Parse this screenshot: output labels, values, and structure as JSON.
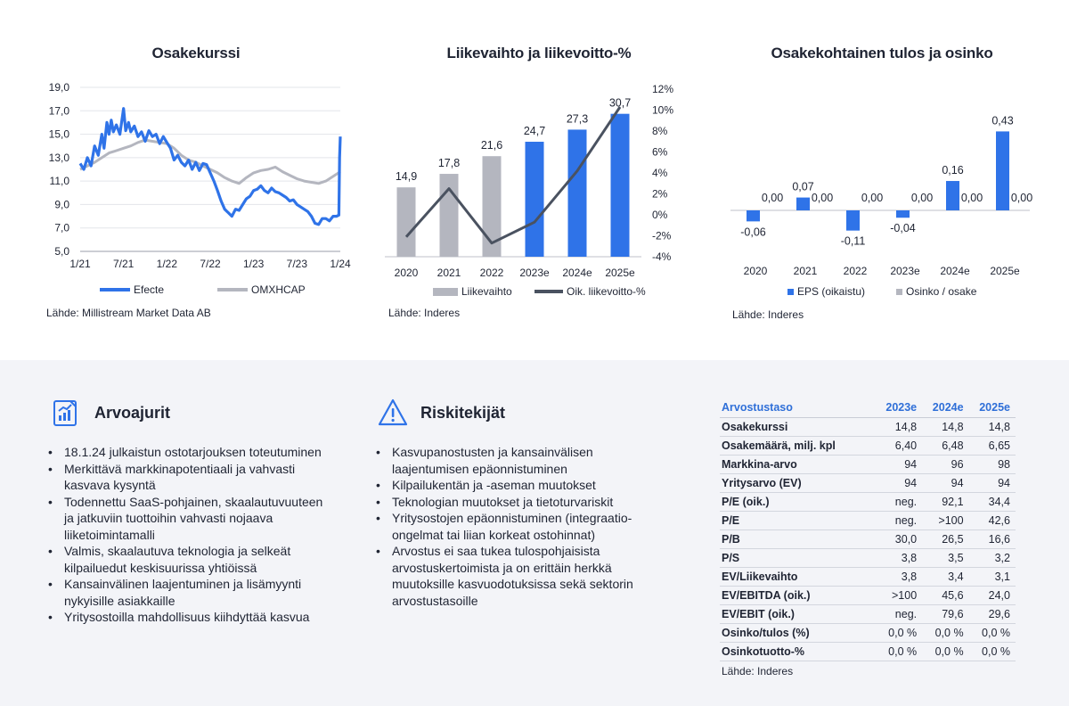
{
  "colors": {
    "blue": "#2f73e8",
    "grey": "#b4b6bf",
    "dark": "#4a5260",
    "axis": "#bfc2c9"
  },
  "chart_data": [
    {
      "type": "line",
      "title": "Osakekurssi",
      "x_ticks": [
        "1/21",
        "7/21",
        "1/22",
        "7/22",
        "1/23",
        "7/23",
        "1/24"
      ],
      "y_ticks": [
        "19,0",
        "17,0",
        "15,0",
        "13,0",
        "11,0",
        "9,0",
        "7,0",
        "5,0"
      ],
      "ylim": [
        5,
        19
      ],
      "xlim": [
        0,
        36
      ],
      "grid": true,
      "legend_position": "bottom",
      "series": [
        {
          "name": "Efecte",
          "color": "#2f73e8",
          "points": [
            [
              0,
              12.5
            ],
            [
              0.5,
              12.0
            ],
            [
              1,
              13.0
            ],
            [
              1.5,
              12.3
            ],
            [
              2,
              14.0
            ],
            [
              2.5,
              13.2
            ],
            [
              3,
              15.0
            ],
            [
              3.3,
              13.8
            ],
            [
              3.7,
              16.0
            ],
            [
              4,
              15.0
            ],
            [
              4.3,
              16.2
            ],
            [
              4.6,
              15.2
            ],
            [
              5,
              15.8
            ],
            [
              5.5,
              15.0
            ],
            [
              6,
              17.2
            ],
            [
              6.3,
              15.3
            ],
            [
              6.7,
              16.0
            ],
            [
              7,
              15.2
            ],
            [
              7.5,
              15.7
            ],
            [
              8,
              14.8
            ],
            [
              8.5,
              15.2
            ],
            [
              9,
              14.4
            ],
            [
              9.5,
              15.3
            ],
            [
              10,
              14.8
            ],
            [
              10.5,
              15.0
            ],
            [
              11,
              14.2
            ],
            [
              11.5,
              14.8
            ],
            [
              12,
              14.3
            ],
            [
              12.5,
              13.8
            ],
            [
              13,
              12.8
            ],
            [
              13.5,
              13.2
            ],
            [
              14,
              12.6
            ],
            [
              14.5,
              12.3
            ],
            [
              15,
              12.8
            ],
            [
              15.5,
              12.0
            ],
            [
              16,
              12.6
            ],
            [
              16.5,
              11.9
            ],
            [
              17,
              12.5
            ],
            [
              17.5,
              12.4
            ],
            [
              18,
              11.7
            ],
            [
              18.5,
              11.0
            ],
            [
              19,
              10.2
            ],
            [
              19.5,
              9.3
            ],
            [
              20,
              8.6
            ],
            [
              20.5,
              8.3
            ],
            [
              21,
              8.0
            ],
            [
              21.5,
              8.6
            ],
            [
              22,
              8.5
            ],
            [
              22.5,
              9.0
            ],
            [
              23,
              9.5
            ],
            [
              23.5,
              9.7
            ],
            [
              24,
              10.2
            ],
            [
              24.5,
              10.3
            ],
            [
              25,
              10.6
            ],
            [
              25.5,
              10.2
            ],
            [
              26,
              10.0
            ],
            [
              26.5,
              10.4
            ],
            [
              27,
              10.1
            ],
            [
              27.5,
              10.0
            ],
            [
              28,
              9.8
            ],
            [
              28.5,
              9.6
            ],
            [
              29,
              9.3
            ],
            [
              29.5,
              9.4
            ],
            [
              30,
              9.0
            ],
            [
              30.5,
              8.8
            ],
            [
              31,
              8.6
            ],
            [
              31.5,
              8.4
            ],
            [
              32,
              8.0
            ],
            [
              32.5,
              7.4
            ],
            [
              33,
              7.3
            ],
            [
              33.5,
              7.8
            ],
            [
              34,
              7.8
            ],
            [
              34.5,
              7.6
            ],
            [
              35,
              8.0
            ],
            [
              35.5,
              8.0
            ],
            [
              35.8,
              8.1
            ],
            [
              35.9,
              13.0
            ],
            [
              36,
              14.8
            ]
          ]
        },
        {
          "name": "OMXHCAP",
          "color": "#b4b6bf",
          "points": [
            [
              0,
              12.0
            ],
            [
              1,
              12.3
            ],
            [
              2,
              12.6
            ],
            [
              3,
              13.0
            ],
            [
              4,
              13.4
            ],
            [
              5,
              13.6
            ],
            [
              6,
              13.8
            ],
            [
              7,
              14.0
            ],
            [
              8,
              14.3
            ],
            [
              9,
              14.5
            ],
            [
              10,
              14.4
            ],
            [
              11,
              14.3
            ],
            [
              12,
              14.2
            ],
            [
              13,
              13.8
            ],
            [
              14,
              13.2
            ],
            [
              15,
              12.8
            ],
            [
              16,
              12.6
            ],
            [
              17,
              12.3
            ],
            [
              18,
              12.0
            ],
            [
              19,
              11.7
            ],
            [
              20,
              11.3
            ],
            [
              21,
              11.0
            ],
            [
              22,
              10.8
            ],
            [
              23,
              11.3
            ],
            [
              24,
              11.7
            ],
            [
              25,
              11.9
            ],
            [
              26,
              12.0
            ],
            [
              27,
              12.2
            ],
            [
              28,
              11.8
            ],
            [
              29,
              11.5
            ],
            [
              30,
              11.2
            ],
            [
              31,
              11.0
            ],
            [
              32,
              10.9
            ],
            [
              33,
              10.8
            ],
            [
              34,
              11.0
            ],
            [
              35,
              11.4
            ],
            [
              36,
              11.8
            ]
          ]
        }
      ]
    },
    {
      "type": "bar+line",
      "title": "Liikevaihto ja liikevoitto-%",
      "categories": [
        "2020",
        "2021",
        "2022",
        "2023e",
        "2024e",
        "2025e"
      ],
      "series": [
        {
          "name": "Liikevaihto",
          "type": "bar",
          "values": [
            14.9,
            17.8,
            21.6,
            24.7,
            27.3,
            30.7
          ],
          "labels": [
            "14,9",
            "17,8",
            "21,6",
            "24,7",
            "27,3",
            "30,7"
          ],
          "colors": [
            "#b4b6bf",
            "#b4b6bf",
            "#b4b6bf",
            "#2f73e8",
            "#2f73e8",
            "#2f73e8"
          ]
        },
        {
          "name": "Oik. liikevoitto-%",
          "type": "line",
          "values": [
            -2.1,
            2.5,
            -2.7,
            -0.7,
            4.2,
            10.3
          ],
          "color": "#4a5260"
        }
      ],
      "ylim_left": [
        0,
        36
      ],
      "ylim_right": [
        -4,
        12
      ],
      "right_ticks": [
        "12%",
        "10%",
        "8%",
        "6%",
        "4%",
        "2%",
        "0%",
        "-2%",
        "-4%"
      ],
      "legend_position": "bottom"
    },
    {
      "type": "bar",
      "title": "Osakekohtainen tulos ja osinko",
      "categories": [
        "2020",
        "2021",
        "2022",
        "2023e",
        "2024e",
        "2025e"
      ],
      "series": [
        {
          "name": "EPS (oikaistu)",
          "values": [
            -0.06,
            0.07,
            -0.11,
            -0.04,
            0.16,
            0.43
          ],
          "labels": [
            "-0,06",
            "0,07",
            "-0,11",
            "-0,04",
            "0,16",
            "0,43"
          ],
          "color": "#2f73e8"
        },
        {
          "name": "Osinko / osake",
          "values": [
            0,
            0,
            0,
            0,
            0,
            0
          ],
          "labels": [
            "0,00",
            "0,00",
            "0,00",
            "0,00",
            "0,00",
            "0,00"
          ],
          "color": "#b4b6bf"
        }
      ],
      "ylim": [
        -0.2,
        0.5
      ],
      "legend_position": "bottom"
    }
  ],
  "sources": {
    "c1": "Lähde: Millistream Market Data AB",
    "c2": "Lähde: Inderes",
    "c3": "Lähde: Inderes",
    "table": "Lähde: Inderes"
  },
  "drivers": {
    "title": "Arvoajurit",
    "icon": "chart-report-icon",
    "items": [
      "18.1.24 julkaistun ostotarjouksen toteutuminen",
      "Merkittävä markkinapotentiaali ja vahvasti kasvava kysyntä",
      "Todennettu SaaS-pohjainen, skaalautuvuuteen ja jatkuviin tuottoihin vahvasti nojaava liiketoimintamalli",
      "Valmis, skaalautuva teknologia ja selkeät kilpailuedut keskisuurissa yhtiöissä",
      "Kansainvälinen laajentuminen ja lisämyynti nykyisille asiakkaille",
      "Yritysostoilla mahdollisuus kiihdyttää kasvua"
    ]
  },
  "risks": {
    "title": "Riskitekijät",
    "icon": "warning-icon",
    "items": [
      "Kasvupanostusten ja kansainvälisen laajentumisen epäonnistuminen",
      "Kilpailukentän ja -aseman muutokset",
      "Teknologian muutokset ja tietoturvariskit",
      "Yritysostojen epäonnistuminen (integraatio-ongelmat tai liian korkeat ostohinnat)",
      "Arvostus ei saa tukea tulospohjaisista arvostuskertoimista ja on erittäin herkkä muutoksille kasvuodotuksissa sekä sektorin arvostustasoille"
    ]
  },
  "valuation": {
    "headers": [
      "Arvostustaso",
      "2023e",
      "2024e",
      "2025e"
    ],
    "rows": [
      [
        "Osakekurssi",
        "14,8",
        "14,8",
        "14,8"
      ],
      [
        "Osakemäärä, milj. kpl",
        "6,40",
        "6,48",
        "6,65"
      ],
      [
        "Markkina-arvo",
        "94",
        "96",
        "98"
      ],
      [
        "Yritysarvo (EV)",
        "94",
        "94",
        "94"
      ],
      [
        "P/E (oik.)",
        "neg.",
        "92,1",
        "34,4"
      ],
      [
        "P/E",
        "neg.",
        ">100",
        "42,6"
      ],
      [
        "P/B",
        "30,0",
        "26,5",
        "16,6"
      ],
      [
        "P/S",
        "3,8",
        "3,5",
        "3,2"
      ],
      [
        "EV/Liikevaihto",
        "3,8",
        "3,4",
        "3,1"
      ],
      [
        "EV/EBITDA (oik.)",
        ">100",
        "45,6",
        "24,0"
      ],
      [
        "EV/EBIT (oik.)",
        "neg.",
        "79,6",
        "29,6"
      ],
      [
        "Osinko/tulos (%)",
        "0,0 %",
        "0,0 %",
        "0,0 %"
      ],
      [
        "Osinkotuotto-%",
        "0,0 %",
        "0,0 %",
        "0,0 %"
      ]
    ]
  }
}
